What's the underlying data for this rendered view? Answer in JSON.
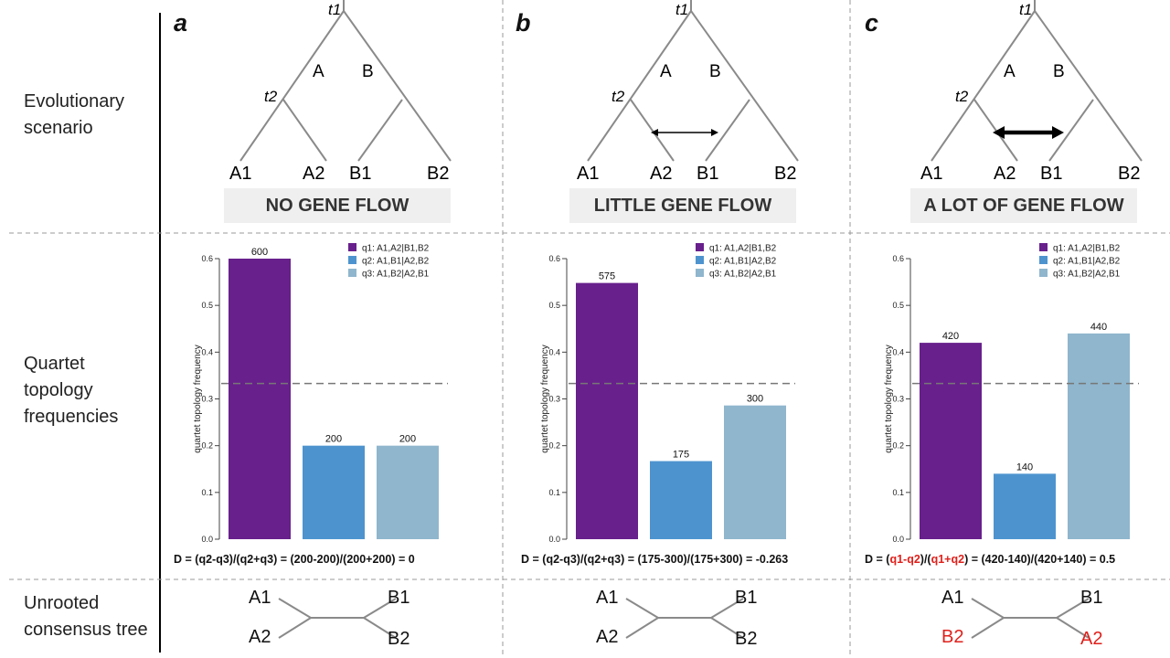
{
  "row_labels": {
    "scenario": "Evolutionary scenario",
    "quartet": "Quartet topology frequencies",
    "unrooted": "Unrooted consensus tree"
  },
  "axis_label": "quartet topology frequency",
  "legend": [
    {
      "label": "q1: A1,A2|B1,B2",
      "color": "#68208c"
    },
    {
      "label": "q2: A1,B1|A2,B2",
      "color": "#4d94cf"
    },
    {
      "label": "q3: A1,B2|A2,B1",
      "color": "#8fb6cd"
    }
  ],
  "reference_line": 0.333,
  "panels": [
    {
      "letter": "a",
      "gene_flow": "NO GENE FLOW",
      "gene_flow_arrow": "none",
      "tree": {
        "t1": "t1",
        "t2": "t2",
        "clade_a": "A",
        "clade_b": "B",
        "leaves": [
          "A1",
          "A2",
          "B1",
          "B2"
        ]
      },
      "formula": {
        "prefix": "D = (",
        "t1": "q2-q3",
        "mid": ")/(",
        "t2": "q2+q3",
        "suffix": ") = (200-200)/(200+200) = 0",
        "highlight": false
      },
      "unrooted": {
        "tl": "A1",
        "bl": "A2",
        "tr": "B1",
        "br": "B2",
        "highlight": false
      }
    },
    {
      "letter": "b",
      "gene_flow": "LITTLE GENE FLOW",
      "gene_flow_arrow": "thin",
      "tree": {
        "t1": "t1",
        "t2": "t2",
        "clade_a": "A",
        "clade_b": "B",
        "leaves": [
          "A1",
          "A2",
          "B1",
          "B2"
        ]
      },
      "formula": {
        "prefix": "D = (",
        "t1": "q2-q3",
        "mid": ")/(",
        "t2": "q2+q3",
        "suffix": ") = (175-300)/(175+300) = -0.263",
        "highlight": false
      },
      "unrooted": {
        "tl": "A1",
        "bl": "A2",
        "tr": "B1",
        "br": "B2",
        "highlight": false
      }
    },
    {
      "letter": "c",
      "gene_flow": "A LOT OF GENE FLOW",
      "gene_flow_arrow": "thick",
      "tree": {
        "t1": "t1",
        "t2": "t2",
        "clade_a": "A",
        "clade_b": "B",
        "leaves": [
          "A1",
          "A2",
          "B1",
          "B2"
        ]
      },
      "formula": {
        "prefix": "D = (",
        "t1": "q1-q2",
        "mid": ")/(",
        "t2": "q1+q2",
        "suffix": ") = (420-140)/(420+140) = 0.5",
        "highlight": true
      },
      "unrooted": {
        "tl": "A1",
        "bl": "B2",
        "tr": "B1",
        "br": "A2",
        "highlight": true
      }
    }
  ],
  "chart_data": [
    {
      "type": "bar",
      "categories": [
        "q1",
        "q2",
        "q3"
      ],
      "values": [
        0.6,
        0.2,
        0.2
      ],
      "data_labels": [
        "600",
        "200",
        "200"
      ],
      "ylabel": "quartet topology frequency",
      "ylim": [
        0,
        0.6
      ],
      "yticks": [
        "0.0",
        "0.1",
        "0.2",
        "0.3",
        "0.4",
        "0.5",
        "0.6"
      ]
    },
    {
      "type": "bar",
      "categories": [
        "q1",
        "q2",
        "q3"
      ],
      "values": [
        0.548,
        0.167,
        0.286
      ],
      "data_labels": [
        "575",
        "175",
        "300"
      ],
      "ylabel": "quartet topology frequency",
      "ylim": [
        0,
        0.6
      ],
      "yticks": [
        "0.0",
        "0.1",
        "0.2",
        "0.3",
        "0.4",
        "0.5",
        "0.6"
      ]
    },
    {
      "type": "bar",
      "categories": [
        "q1",
        "q2",
        "q3"
      ],
      "values": [
        0.42,
        0.14,
        0.44
      ],
      "data_labels": [
        "420",
        "140",
        "440"
      ],
      "ylabel": "quartet topology frequency",
      "ylim": [
        0,
        0.6
      ],
      "yticks": [
        "0.0",
        "0.1",
        "0.2",
        "0.3",
        "0.4",
        "0.5",
        "0.6"
      ]
    }
  ]
}
